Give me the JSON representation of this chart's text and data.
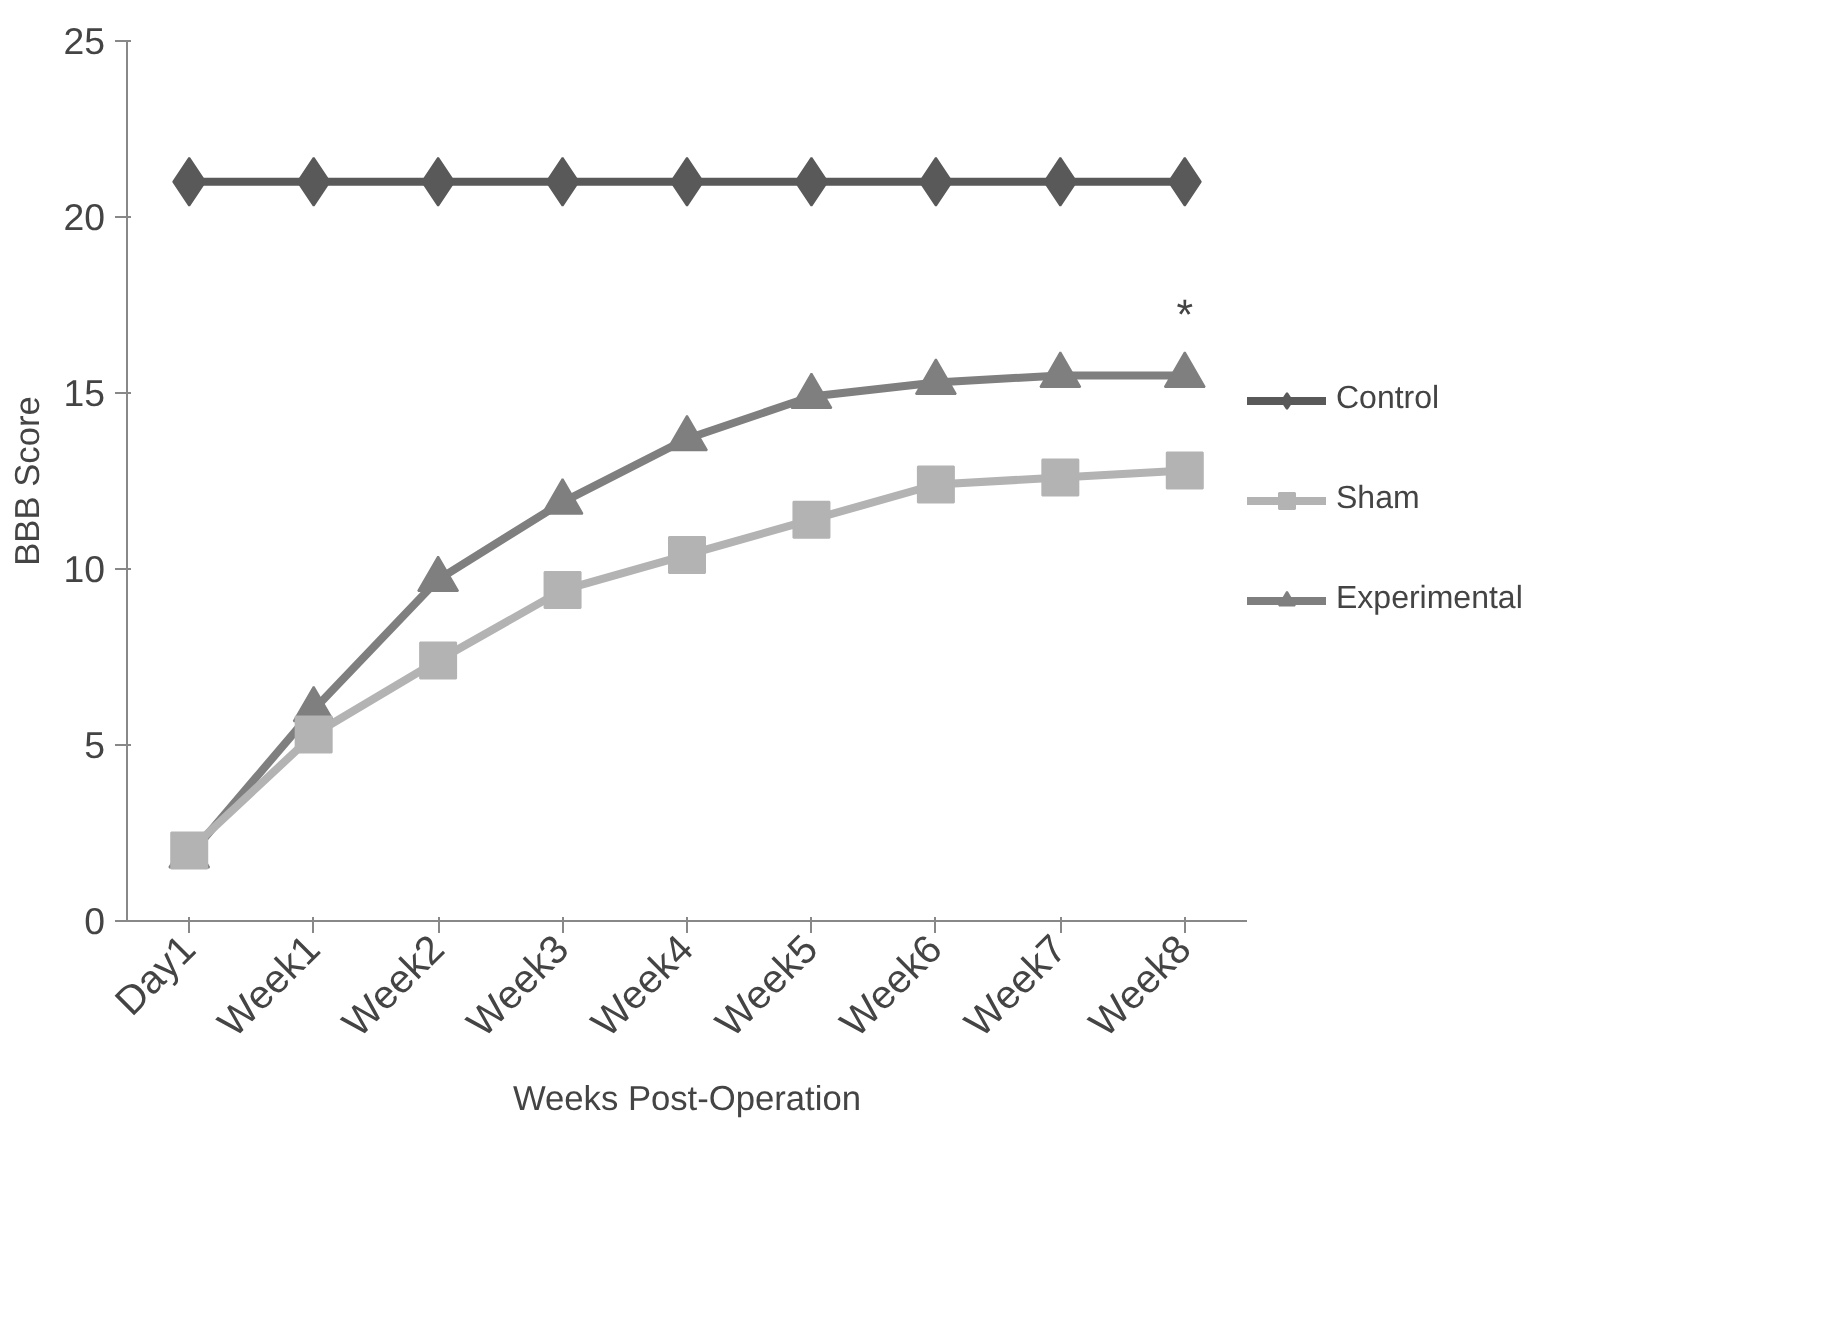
{
  "chart_data": {
    "type": "line",
    "xlabel": "Weeks Post-Operation",
    "ylabel": "BBB Score",
    "categories": [
      "Day1",
      "Week1",
      "Week2",
      "Week3",
      "Week4",
      "Week5",
      "Week6",
      "Week7",
      "Week8"
    ],
    "series": [
      {
        "name": "Control",
        "color": "#595959",
        "marker": "diamond",
        "values": [
          21,
          21,
          21,
          21,
          21,
          21,
          21,
          21,
          21
        ]
      },
      {
        "name": "Sham",
        "color": "#b3b3b3",
        "marker": "square",
        "values": [
          2.0,
          5.3,
          7.4,
          9.4,
          10.4,
          11.4,
          12.4,
          12.6,
          12.8
        ]
      },
      {
        "name": "Experimental",
        "color": "#7f7f7f",
        "marker": "triangle",
        "values": [
          1.85,
          6.0,
          9.7,
          11.9,
          13.7,
          14.9,
          15.3,
          15.5,
          15.5
        ]
      }
    ],
    "annotations": [
      "*"
    ],
    "ylim": [
      0,
      25
    ],
    "yticks": [
      0,
      5,
      10,
      15,
      20,
      25
    ],
    "grid": false,
    "legend": "right",
    "line_style": "solid"
  }
}
